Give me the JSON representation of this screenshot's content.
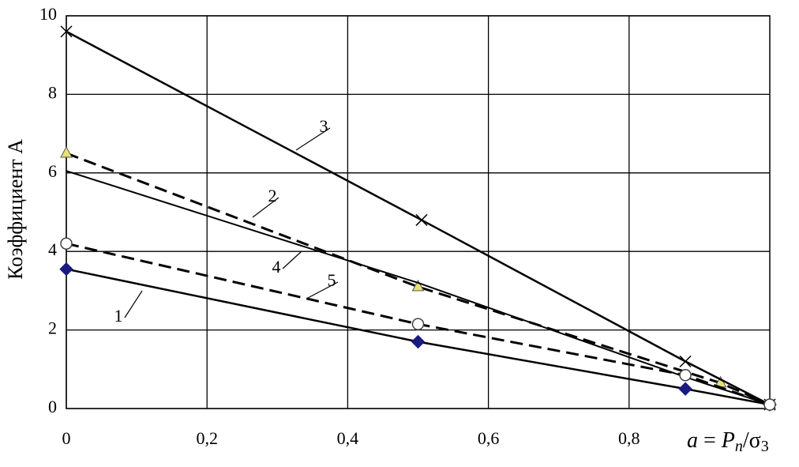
{
  "chart_data": {
    "type": "line",
    "y_label": "Коэффициент А",
    "x_label_parts": [
      "a",
      " = ",
      "P",
      "n",
      "/σ",
      "3"
    ],
    "xlim": [
      0,
      1
    ],
    "ylim": [
      0,
      10
    ],
    "xticks": [
      0,
      {
        "value": 0.2,
        "label": "0,2"
      },
      {
        "value": 0.4,
        "label": "0,4"
      },
      {
        "value": 0.6,
        "label": "0,6"
      },
      {
        "value": 0.8,
        "label": "0,8"
      }
    ],
    "yticks": [
      0,
      2,
      4,
      6,
      8,
      10
    ],
    "grid": true,
    "series": [
      {
        "name": "1",
        "color": "#1a1a80",
        "marker": "diamond",
        "dash": false,
        "x": [
          0,
          0.5,
          0.88,
          1
        ],
        "values": [
          3.55,
          1.7,
          0.5,
          0.1
        ]
      },
      {
        "name": "2",
        "color": "#e8e070",
        "marker": "triangle",
        "dash": true,
        "x": [
          0,
          0.5,
          0.93,
          1
        ],
        "values": [
          6.5,
          3.1,
          0.65,
          0.1
        ]
      },
      {
        "name": "3",
        "color": "#000000",
        "marker": "cross",
        "dash": false,
        "x": [
          0,
          0.505,
          0.88,
          1
        ],
        "values": [
          9.6,
          4.8,
          1.2,
          0.1
        ]
      },
      {
        "name": "4",
        "color": "#000000",
        "marker": "none",
        "dash": false,
        "x": [
          0,
          0.5,
          0.88,
          1
        ],
        "values": [
          6.05,
          3.2,
          0.8,
          0.1
        ]
      },
      {
        "name": "5",
        "color": "#ffffff",
        "marker": "circle",
        "dash": true,
        "x": [
          0,
          0.5,
          0.88,
          1
        ],
        "values": [
          4.2,
          2.15,
          0.85,
          0.1
        ]
      }
    ]
  }
}
